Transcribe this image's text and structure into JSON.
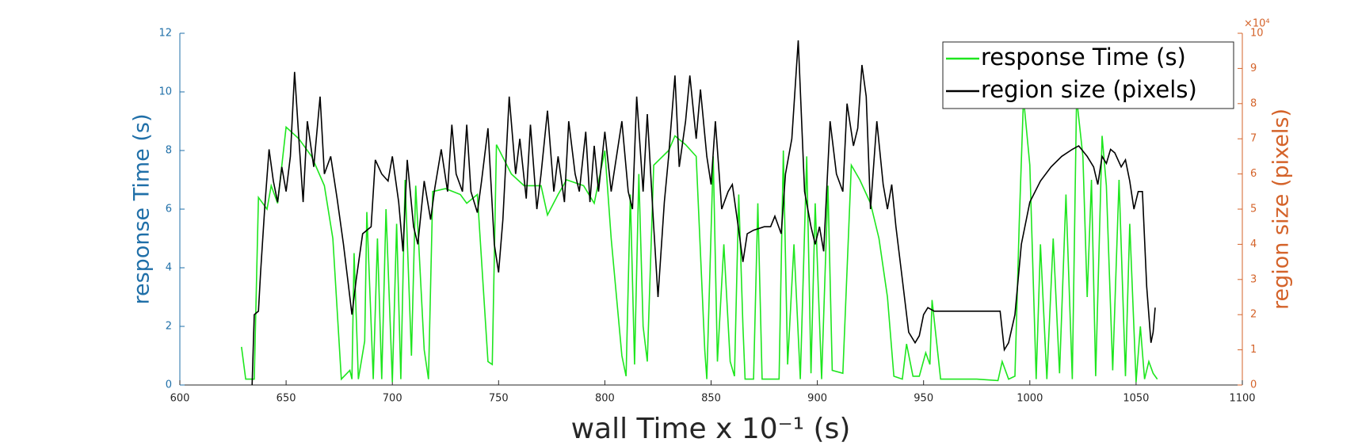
{
  "chart_data": {
    "type": "line",
    "x_label": "wall Time x 10⁻¹ (s)",
    "y_label": "response Time (s)",
    "y2_label": "region size (pixels)",
    "y2_multiplier": "×10⁴",
    "xlim": [
      600,
      1100
    ],
    "xticks": [
      600,
      650,
      700,
      750,
      800,
      850,
      900,
      950,
      1000,
      1050,
      1100
    ],
    "ylim": [
      0,
      12
    ],
    "yticks": [
      0,
      2,
      4,
      6,
      8,
      10,
      12
    ],
    "y2lim": [
      0,
      100000
    ],
    "y2ticks": [
      {
        "value": 0,
        "label": "0"
      },
      {
        "value": 10000,
        "label": "1"
      },
      {
        "value": 20000,
        "label": "2"
      },
      {
        "value": 30000,
        "label": "3"
      },
      {
        "value": 40000,
        "label": "4"
      },
      {
        "value": 50000,
        "label": "5"
      },
      {
        "value": 60000,
        "label": "6"
      },
      {
        "value": 70000,
        "label": "7"
      },
      {
        "value": 80000,
        "label": "8"
      },
      {
        "value": 90000,
        "label": "9"
      },
      {
        "value": 100000,
        "label": "10"
      }
    ],
    "y_color": "#1f6fa8",
    "y2_color": "#d4632a",
    "legend": "upper right",
    "series": [
      {
        "name": "response Time (s)",
        "color": "#1ee61e",
        "x": [
          629,
          631,
          635,
          637,
          641,
          643,
          646,
          650,
          656,
          662,
          668,
          672,
          676,
          680,
          681,
          682,
          684,
          687,
          688,
          691,
          693,
          695,
          697,
          700,
          702,
          704,
          706,
          709,
          711,
          715,
          717,
          719,
          725,
          732,
          735,
          740,
          745,
          747,
          749,
          756,
          762,
          770,
          773,
          778,
          782,
          790,
          795,
          800,
          803,
          808,
          810,
          812,
          814,
          816,
          818,
          820,
          823,
          830,
          833,
          838,
          843,
          847,
          848,
          851,
          853,
          856,
          859,
          861,
          863,
          865,
          866,
          870,
          872,
          874,
          882,
          884,
          886,
          889,
          892,
          895,
          897,
          899,
          902,
          905,
          907,
          912,
          916,
          920,
          925,
          929,
          933,
          936,
          940,
          942,
          945,
          948,
          951,
          953,
          954,
          958,
          965,
          975,
          985,
          987,
          990,
          993,
          995,
          997,
          1000,
          1003,
          1005,
          1008,
          1011,
          1014,
          1017,
          1020,
          1022,
          1025,
          1027,
          1029,
          1031,
          1034,
          1036,
          1039,
          1042,
          1045,
          1047,
          1050,
          1052,
          1054,
          1056,
          1058,
          1060
        ],
        "values": [
          1.3,
          0.2,
          0.2,
          6.4,
          6.0,
          6.8,
          6.2,
          8.8,
          8.4,
          7.8,
          6.8,
          5.0,
          0.2,
          0.5,
          0.2,
          4.5,
          0.2,
          1.5,
          5.9,
          0.2,
          5.0,
          0.2,
          6.0,
          0.1,
          5.5,
          0.2,
          7.0,
          1.0,
          6.8,
          1.2,
          0.2,
          6.6,
          6.7,
          6.5,
          6.2,
          6.5,
          0.8,
          0.7,
          8.2,
          7.2,
          6.8,
          6.8,
          5.8,
          6.5,
          7.0,
          6.8,
          6.2,
          8.0,
          5.0,
          1.0,
          0.3,
          6.5,
          0.7,
          7.2,
          2.0,
          0.8,
          7.5,
          8.0,
          8.5,
          8.2,
          7.8,
          1.2,
          0.2,
          7.8,
          0.8,
          4.8,
          0.8,
          0.3,
          6.5,
          2.0,
          0.2,
          0.2,
          6.2,
          0.2,
          0.2,
          8.0,
          0.7,
          4.8,
          0.2,
          7.8,
          0.4,
          6.2,
          0.2,
          6.8,
          0.5,
          0.4,
          7.5,
          7.0,
          6.2,
          5.0,
          3.0,
          0.3,
          0.2,
          1.4,
          0.3,
          0.3,
          1.1,
          0.7,
          2.9,
          0.2,
          0.2,
          0.2,
          0.15,
          0.8,
          0.2,
          0.3,
          5.5,
          9.8,
          7.5,
          0.2,
          4.8,
          0.2,
          5.0,
          0.4,
          6.5,
          0.2,
          9.8,
          7.8,
          3.0,
          7.0,
          0.3,
          8.5,
          6.8,
          0.5,
          7.0,
          0.3,
          5.5,
          0.1,
          2.0,
          0.2,
          0.8,
          0.4,
          0.2
        ]
      },
      {
        "name": "region size (pixels)",
        "color": "#000000",
        "axis": "y2",
        "x": [
          634,
          635,
          637,
          638,
          640,
          642,
          644,
          646,
          648,
          650,
          652,
          654,
          656,
          658,
          660,
          663,
          666,
          668,
          671,
          674,
          677,
          679,
          681,
          683,
          686,
          690,
          692,
          695,
          698,
          700,
          703,
          705,
          707,
          710,
          712,
          715,
          718,
          720,
          723,
          726,
          728,
          730,
          733,
          735,
          737,
          740,
          742,
          745,
          748,
          750,
          752,
          755,
          758,
          760,
          763,
          765,
          768,
          770,
          773,
          776,
          778,
          781,
          783,
          786,
          788,
          791,
          793,
          795,
          797,
          800,
          803,
          808,
          811,
          813,
          815,
          818,
          820,
          823,
          825,
          828,
          830,
          833,
          835,
          838,
          840,
          843,
          845,
          848,
          850,
          852,
          855,
          858,
          860,
          863,
          865,
          867,
          870,
          875,
          878,
          880,
          883,
          885,
          888,
          891,
          894,
          897,
          899,
          901,
          903,
          906,
          909,
          912,
          914,
          917,
          919,
          921,
          923,
          925,
          928,
          931,
          933,
          935,
          937,
          940,
          943,
          946,
          948,
          950,
          952,
          955,
          960,
          970,
          980,
          986,
          988,
          990,
          993,
          996,
          1000,
          1005,
          1010,
          1015,
          1020,
          1023,
          1027,
          1030,
          1032,
          1034,
          1036,
          1038,
          1040,
          1043,
          1045,
          1047,
          1049,
          1051,
          1053,
          1055,
          1057,
          1058,
          1059
        ],
        "values": [
          0,
          20000,
          21000,
          32000,
          51000,
          67000,
          58000,
          52000,
          62000,
          55000,
          65000,
          89000,
          70000,
          52000,
          75000,
          62000,
          82000,
          60000,
          65000,
          53000,
          40000,
          30000,
          20000,
          30000,
          43000,
          45000,
          64000,
          60000,
          58000,
          65000,
          52000,
          38000,
          64000,
          45000,
          40000,
          58000,
          47000,
          56000,
          67000,
          55000,
          74000,
          60000,
          55000,
          74000,
          55000,
          49000,
          58000,
          73000,
          40000,
          32000,
          47000,
          82000,
          60000,
          70000,
          53000,
          74000,
          50000,
          60000,
          78000,
          55000,
          65000,
          52000,
          75000,
          60000,
          55000,
          72000,
          52000,
          68000,
          55000,
          72000,
          55000,
          75000,
          55000,
          50000,
          82000,
          55000,
          77000,
          45000,
          25000,
          52000,
          65000,
          88000,
          62000,
          75000,
          88000,
          70000,
          84000,
          65000,
          57000,
          75000,
          50000,
          55000,
          57000,
          44000,
          35000,
          43000,
          44000,
          45000,
          45000,
          48000,
          43000,
          60000,
          70000,
          98000,
          55000,
          45000,
          40000,
          45000,
          38000,
          75000,
          60000,
          55000,
          80000,
          68000,
          73000,
          91000,
          82000,
          50000,
          75000,
          57000,
          50000,
          57000,
          45000,
          30000,
          15000,
          12000,
          14000,
          20000,
          22000,
          21000,
          21000,
          21000,
          21000,
          21000,
          10000,
          12000,
          20000,
          40000,
          52000,
          58000,
          62000,
          65000,
          67000,
          68000,
          65000,
          62000,
          57000,
          65000,
          63000,
          67000,
          66000,
          62000,
          64000,
          58000,
          50000,
          55000,
          55000,
          28000,
          12000,
          15000,
          22000
        ]
      }
    ]
  }
}
